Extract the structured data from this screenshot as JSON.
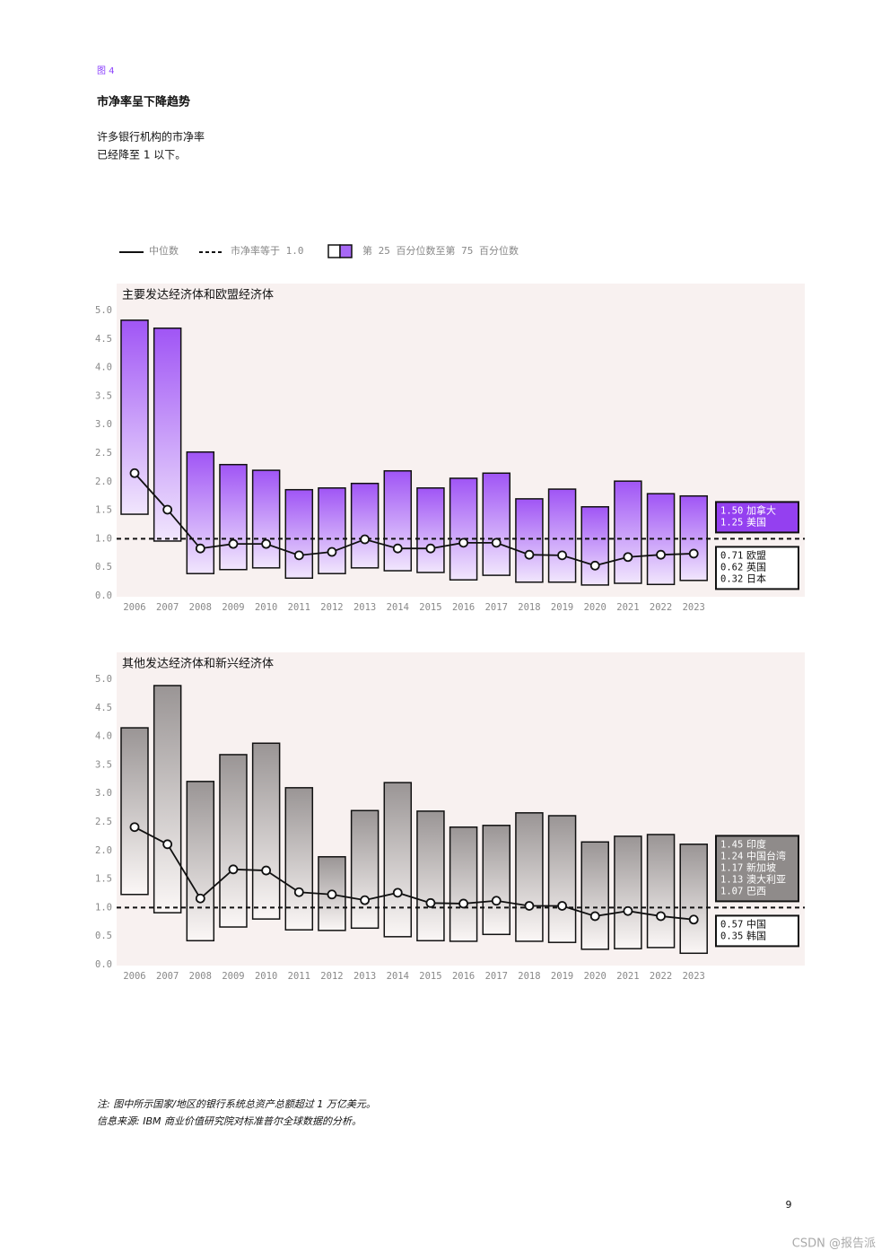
{
  "label": "图 4",
  "title": "市净率呈下降趋势",
  "subtitle": [
    "许多银行机构的市净率",
    "已经降至 1 以下。"
  ],
  "legend": {
    "median": "中位数",
    "reference": "市净率等于 1.0",
    "range": "第 25 百分位数至第 75 百分位数"
  },
  "chart_data": [
    {
      "type": "range_bar",
      "title": "主要发达经济体和欧盟经济体",
      "categories": [
        "2006",
        "2007",
        "2008",
        "2009",
        "2010",
        "2011",
        "2012",
        "2013",
        "2014",
        "2015",
        "2016",
        "2017",
        "2018",
        "2019",
        "2020",
        "2021",
        "2022",
        "2023"
      ],
      "high": [
        4.83,
        4.69,
        2.52,
        2.3,
        2.2,
        1.86,
        1.89,
        1.97,
        2.19,
        1.89,
        2.06,
        2.15,
        1.7,
        1.87,
        1.56,
        2.01,
        1.79,
        1.75
      ],
      "low": [
        1.43,
        0.96,
        0.39,
        0.46,
        0.49,
        0.31,
        0.39,
        0.49,
        0.44,
        0.41,
        0.28,
        0.36,
        0.24,
        0.24,
        0.19,
        0.22,
        0.2,
        0.27
      ],
      "median": [
        2.15,
        1.51,
        0.83,
        0.91,
        0.91,
        0.71,
        0.77,
        0.99,
        0.83,
        0.83,
        0.93,
        0.93,
        0.72,
        0.71,
        0.53,
        0.68,
        0.72,
        0.74
      ],
      "reference_line": 1,
      "ylim": [
        0,
        5
      ],
      "yticks": [
        {
          "value": 0,
          "label": "0.0"
        },
        {
          "value": 0.5,
          "label": "0.5"
        },
        {
          "value": 1,
          "label": "1.0"
        },
        {
          "value": 1.5,
          "label": "1.5"
        },
        {
          "value": 2,
          "label": "2.0"
        },
        {
          "value": 2.5,
          "label": "2.5"
        },
        {
          "value": 3,
          "label": "3.0"
        },
        {
          "value": 3.5,
          "label": "3.5"
        },
        {
          "value": 4,
          "label": "4.0"
        },
        {
          "value": 4.5,
          "label": "4.5"
        },
        {
          "value": 5,
          "label": "5.0"
        }
      ],
      "color_top": "#a055f5",
      "color_bottom": "#f1e6fd",
      "callout_color": "#9440f0",
      "callouts": [
        [
          {
            "value": "1.50",
            "name": "加拿大"
          },
          {
            "value": "1.25",
            "name": "美国"
          }
        ],
        [
          {
            "value": "0.71",
            "name": "欧盟"
          },
          {
            "value": "0.62",
            "name": "英国"
          },
          {
            "value": "0.32",
            "name": "日本"
          }
        ]
      ]
    },
    {
      "type": "range_bar",
      "title": "其他发达经济体和新兴经济体",
      "categories": [
        "2006",
        "2007",
        "2008",
        "2009",
        "2010",
        "2011",
        "2012",
        "2013",
        "2014",
        "2015",
        "2016",
        "2017",
        "2018",
        "2019",
        "2020",
        "2021",
        "2022",
        "2023"
      ],
      "high": [
        4.15,
        4.89,
        3.21,
        3.68,
        3.88,
        3.1,
        1.89,
        2.7,
        3.19,
        2.69,
        2.41,
        2.44,
        2.66,
        2.61,
        2.15,
        2.25,
        2.28,
        2.11
      ],
      "low": [
        1.23,
        0.91,
        0.42,
        0.66,
        0.8,
        0.61,
        0.6,
        0.64,
        0.49,
        0.42,
        0.41,
        0.53,
        0.41,
        0.39,
        0.27,
        0.28,
        0.3,
        0.2
      ],
      "median": [
        2.41,
        2.11,
        1.16,
        1.67,
        1.65,
        1.27,
        1.23,
        1.13,
        1.26,
        1.08,
        1.07,
        1.12,
        1.03,
        1.03,
        0.85,
        0.94,
        0.85,
        0.79
      ],
      "reference_line": 1,
      "ylim": [
        0,
        5
      ],
      "yticks": [
        {
          "value": 0,
          "label": "0.0"
        },
        {
          "value": 0.5,
          "label": "0.5"
        },
        {
          "value": 1,
          "label": "1.0"
        },
        {
          "value": 1.5,
          "label": "1.5"
        },
        {
          "value": 2,
          "label": "2.0"
        },
        {
          "value": 2.5,
          "label": "2.5"
        },
        {
          "value": 3,
          "label": "3.0"
        },
        {
          "value": 3.5,
          "label": "3.5"
        },
        {
          "value": 4,
          "label": "4.0"
        },
        {
          "value": 4.5,
          "label": "4.5"
        },
        {
          "value": 5,
          "label": "5.0"
        }
      ],
      "color_top": "#9a9595",
      "color_bottom": "#fbf7f6",
      "callout_color": "#8f8b8a",
      "callouts": [
        [
          {
            "value": "1.45",
            "name": "印度"
          },
          {
            "value": "1.24",
            "name": "中国台湾"
          },
          {
            "value": "1.17",
            "name": "新加坡"
          },
          {
            "value": "1.13",
            "name": "澳大利亚"
          },
          {
            "value": "1.07",
            "name": "巴西"
          }
        ],
        [
          {
            "value": "0.57",
            "name": "中国"
          },
          {
            "value": "0.35",
            "name": "韩国"
          }
        ]
      ]
    }
  ],
  "notes": [
    "注: 图中所示国家/地区的银行系统总资产总额超过 1 万亿美元。",
    "信息来源: IBM 商业价值研究院对标准普尔全球数据的分析。"
  ],
  "page_number": "9",
  "watermark": "CSDN @报告派"
}
